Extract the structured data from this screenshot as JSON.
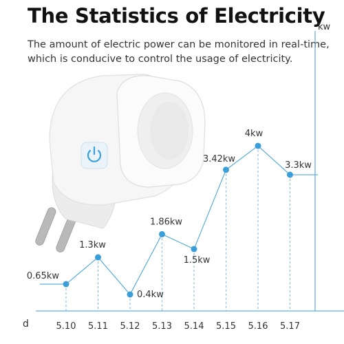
{
  "header": {
    "title": "The Statistics of Electricity",
    "subtitle_line1": "The amount of electric power can be monitored in real-time,",
    "subtitle_line2": "which is conducive to control the usage of electricity."
  },
  "colors": {
    "accent": "#3a9ed8",
    "text": "#333333",
    "plug_body": "#f4f4f4",
    "pins": "#b9b9b9"
  },
  "product_image": {
    "subject": "smart-plug",
    "button_icon": "power-icon"
  },
  "chart_data": {
    "type": "line",
    "x_axis_name": "d",
    "y_axis_name": "kw",
    "categories": [
      "5.10",
      "5.11",
      "5.12",
      "5.13",
      "5.14",
      "5.15",
      "5.16",
      "5.17"
    ],
    "series": [
      {
        "values": [
          0.65,
          1.3,
          0.4,
          1.86,
          1.5,
          3.42,
          4,
          3.3
        ],
        "labels": [
          "0.65kw",
          "1.3kw",
          "0.4kw",
          "1.86kw",
          "1.5kw",
          "3.42kw",
          "4kw",
          "3.3kw"
        ]
      }
    ],
    "ylim": [
      0,
      6.5
    ],
    "grid": "vertical dashed",
    "legend": "none"
  }
}
